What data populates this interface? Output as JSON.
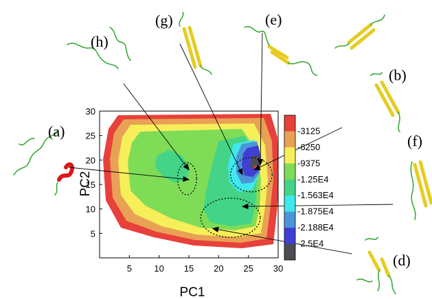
{
  "chart_data": {
    "type": "heatmap",
    "subtype": "free-energy contour landscape",
    "xlabel": "PC1",
    "ylabel": "PC2",
    "xlim": [
      0,
      30
    ],
    "ylim": [
      0,
      30
    ],
    "xticks": [
      5,
      10,
      15,
      20,
      25,
      30
    ],
    "yticks": [
      5,
      10,
      15,
      20,
      25,
      30
    ],
    "grid": false,
    "colorbar": {
      "placement": "right",
      "levels": [
        {
          "label": "-3125",
          "value": -3125,
          "color": "#e8403a"
        },
        {
          "label": "-6250",
          "value": -6250,
          "color": "#e8a155"
        },
        {
          "label": "-9375",
          "value": -9375,
          "color": "#f7ef5a"
        },
        {
          "label": "-1.25E4",
          "value": -12500,
          "color": "#7fdc57"
        },
        {
          "label": "-1.563E4",
          "value": -15630,
          "color": "#43d487"
        },
        {
          "label": "-1.875E4",
          "value": -18750,
          "color": "#3fe8ec"
        },
        {
          "label": "-2.188E4",
          "value": -21880,
          "color": "#4a96d8"
        },
        {
          "label": "-2.5E4",
          "value": -25000,
          "color": "#3f3fd4"
        },
        {
          "label": "",
          "value": -28125,
          "color": "#4c4c55"
        }
      ]
    },
    "regions": [
      {
        "label": "(a)",
        "pc1": 15.0,
        "pc2": 16.0
      },
      {
        "label": "(b)",
        "pc1": 26.0,
        "pc2": 18.0
      },
      {
        "label": "(d)",
        "pc1": 19.0,
        "pc2": 6.0
      },
      {
        "label": "(e)",
        "pc1": 27.0,
        "pc2": 19.0
      },
      {
        "label": "(f)",
        "pc1": 24.0,
        "pc2": 10.5
      },
      {
        "label": "(g)",
        "pc1": 24.0,
        "pc2": 17.0
      },
      {
        "label": "(h)",
        "pc1": 15.0,
        "pc2": 18.0
      }
    ],
    "basins": [
      {
        "center": [
          14.7,
          16.2
        ],
        "radius": [
          1.6,
          3.3
        ]
      },
      {
        "center": [
          25.5,
          17.0
        ],
        "radius": [
          3.5,
          3.5
        ]
      },
      {
        "center": [
          22.0,
          8.2
        ],
        "radius": [
          5.0,
          4.0
        ]
      }
    ]
  },
  "panels": [
    {
      "label": "(a)",
      "color": "#d91818"
    },
    {
      "label": "(b)",
      "color": "#e6cc22"
    },
    {
      "label": "(d)",
      "color": "#e6cc22"
    },
    {
      "label": "(e)",
      "color": "#e6cc22"
    },
    {
      "label": "(f)",
      "color": "#e6cc22"
    },
    {
      "label": "(g)",
      "color": "#e6cc22"
    },
    {
      "label": "(h)",
      "color": "#4ab54a"
    }
  ]
}
